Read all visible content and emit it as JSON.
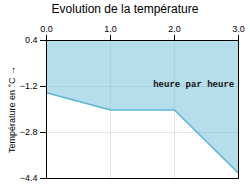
{
  "chart_data": {
    "type": "area",
    "title": "Evolution de la température",
    "y_label": "Température en °C",
    "x": [
      0,
      1,
      2,
      3
    ],
    "values": [
      -1.42,
      -2.02,
      -2.02,
      -4.22
    ],
    "color": "#5ab4d0",
    "xlim": [
      0,
      3
    ],
    "xticks": [
      0,
      1,
      2,
      3
    ],
    "ylim": [
      -4.4,
      0.4
    ],
    "yticks": [
      0.4,
      -1.2,
      -2.8,
      -4.4
    ],
    "grid": true,
    "annotations": [
      {
        "text": "heure par heure",
        "x": 2.3,
        "y": -1.1
      }
    ]
  }
}
